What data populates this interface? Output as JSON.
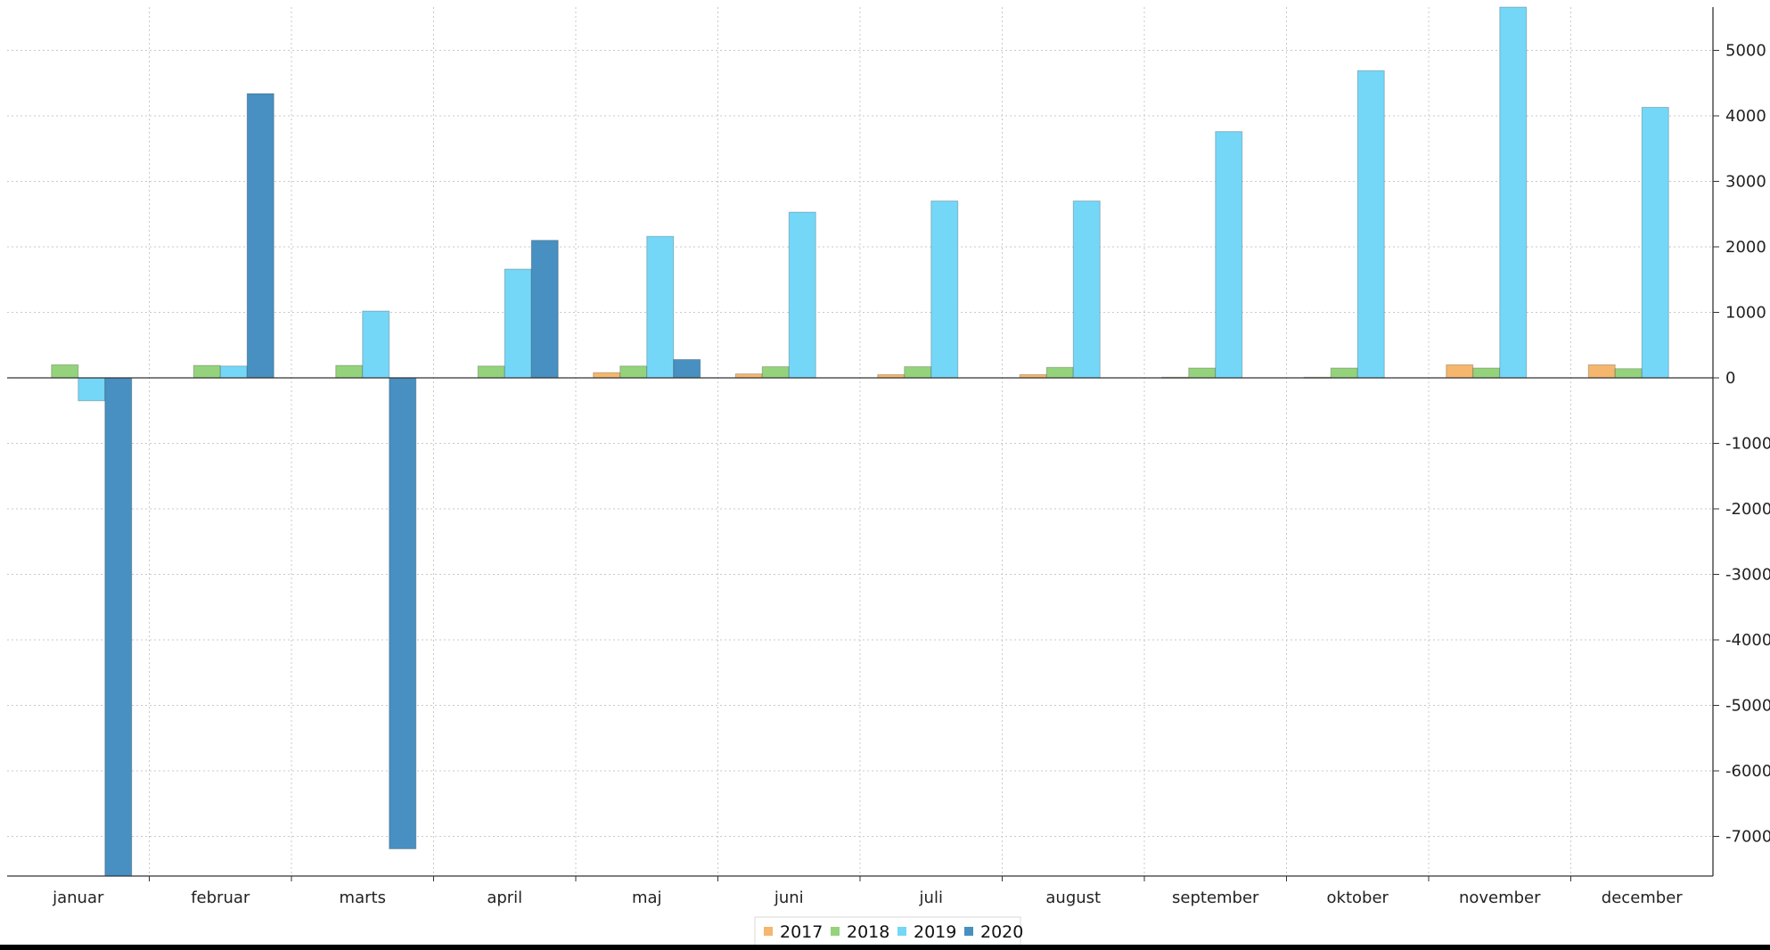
{
  "chart_data": {
    "type": "bar",
    "categories": [
      "januar",
      "februar",
      "marts",
      "april",
      "maj",
      "juni",
      "juli",
      "august",
      "september",
      "oktober",
      "november",
      "december"
    ],
    "series": [
      {
        "name": "2017",
        "color": "#f5b66e",
        "values": [
          0,
          0,
          0,
          0,
          80,
          60,
          50,
          50,
          10,
          10,
          200,
          200
        ]
      },
      {
        "name": "2018",
        "color": "#94d37c",
        "values": [
          200,
          190,
          190,
          180,
          180,
          170,
          170,
          160,
          150,
          150,
          150,
          140
        ]
      },
      {
        "name": "2019",
        "color": "#74d7f7",
        "values": [
          -350,
          180,
          1020,
          1660,
          2160,
          2530,
          2700,
          2700,
          3760,
          4690,
          5660,
          4130
        ]
      },
      {
        "name": "2020",
        "color": "#4790c1",
        "values": [
          -7610,
          4340,
          -7190,
          2100,
          280,
          0,
          0,
          0,
          0,
          0,
          0,
          0
        ]
      }
    ],
    "yticks": [
      5000,
      4000,
      3000,
      2000,
      1000,
      0,
      -1000,
      -2000,
      -3000,
      -4000,
      -5000,
      -6000,
      -7000
    ],
    "ylim": [
      -7610,
      5660
    ],
    "title": "",
    "xlabel": "",
    "ylabel": "",
    "grid": true,
    "legend_position": "bottom-center",
    "y_axis_side": "right"
  }
}
